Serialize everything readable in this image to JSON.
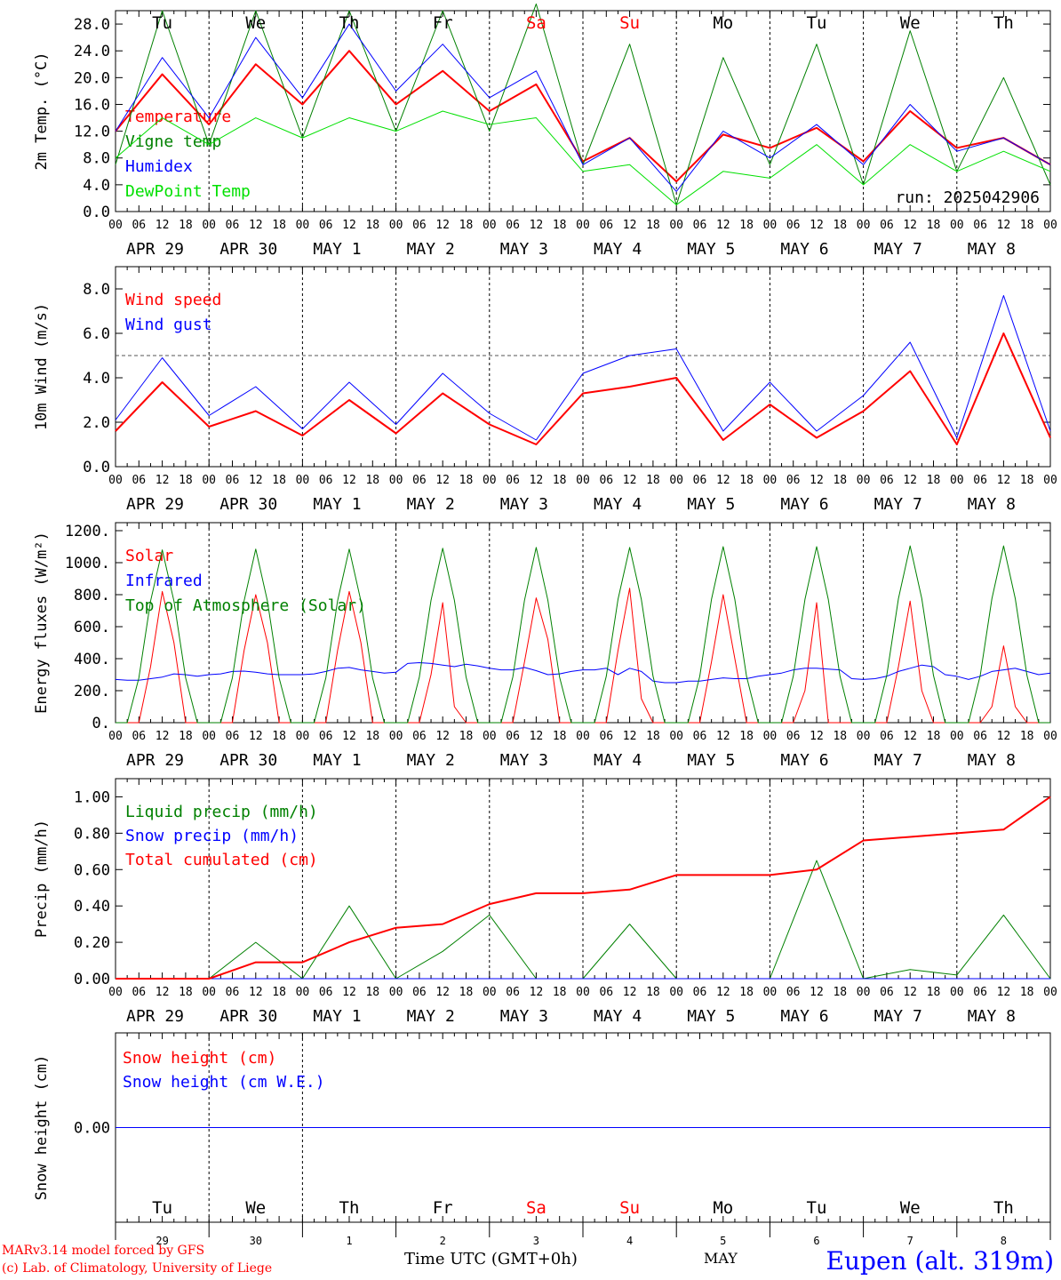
{
  "footer": {
    "credit_line1": "MARv3.14 model forced by GFS",
    "credit_line2": "(c) Lab. of Climatology, University of Liege",
    "x_title": "Time UTC (GMT+0h)",
    "month": "MAY",
    "location": "Eupen (alt. 319m)"
  },
  "days": {
    "weekdays": [
      "Tu",
      "We",
      "Th",
      "Fr",
      "Sa",
      "Su",
      "Mo",
      "Tu",
      "We",
      "Th"
    ],
    "weekend_indices": [
      4,
      5
    ],
    "date_labels": [
      "APR 29",
      "APR 30",
      "MAY  1",
      "MAY  2",
      "MAY  3",
      "MAY  4",
      "MAY  5",
      "MAY  6",
      "MAY  7",
      "MAY  8"
    ],
    "day_numbers": [
      "29",
      "30",
      "1",
      "2",
      "3",
      "4",
      "5",
      "6",
      "7",
      "8"
    ],
    "hour_ticks": [
      "00",
      "06",
      "12",
      "18"
    ],
    "end_tick": "00"
  },
  "colors": {
    "red": "#ff0000",
    "blue": "#0000ff",
    "green": "#008000",
    "lightgreen": "#00e000",
    "black": "#000000"
  },
  "chart_data": [
    {
      "type": "line",
      "ylabel": "2m Temp. (°C)",
      "ylim": [
        0,
        30
      ],
      "yticks": [
        "0.0",
        "4.0",
        "8.0",
        "12.0",
        "16.0",
        "20.0",
        "24.0",
        "28.0"
      ],
      "ytick_values": [
        0,
        4,
        8,
        12,
        16,
        20,
        24,
        28
      ],
      "x_hours": [
        0,
        12,
        24,
        36,
        48,
        60,
        72,
        84,
        96,
        108,
        120,
        132,
        144,
        156,
        168,
        180,
        192,
        204,
        216,
        228,
        240
      ],
      "annotation": "run: 2025042906",
      "series": [
        {
          "name": "Temperature",
          "color": "#ff0000",
          "width": 2,
          "values": [
            12,
            20.5,
            13,
            22,
            16,
            24,
            16,
            21,
            15,
            19,
            7.5,
            11,
            4.5,
            11.5,
            9.5,
            12.5,
            7.5,
            15,
            9.5,
            11,
            7
          ]
        },
        {
          "name": "Vigne temp",
          "color": "#008000",
          "width": 1,
          "values": [
            7,
            30,
            10,
            30,
            11,
            30,
            12,
            30,
            12,
            31,
            7,
            25,
            1,
            23,
            7,
            25,
            4,
            27,
            6,
            20,
            4
          ]
        },
        {
          "name": "Humidex",
          "color": "#0000ff",
          "width": 1,
          "values": [
            12,
            23,
            14,
            26,
            17,
            28,
            18,
            25,
            17,
            21,
            7,
            11,
            3,
            12,
            8,
            13,
            7,
            16,
            9,
            11,
            7
          ]
        },
        {
          "name": "DewPoint Temp",
          "color": "#00e000",
          "width": 1,
          "values": [
            8,
            14,
            10,
            14,
            11,
            14,
            12,
            15,
            13,
            14,
            6,
            7,
            1,
            6,
            5,
            10,
            4,
            10,
            6,
            9,
            6
          ]
        }
      ]
    },
    {
      "type": "line",
      "ylabel": "10m Wind (m/s)",
      "ylim": [
        0,
        9
      ],
      "yticks": [
        "0.0",
        "2.0",
        "4.0",
        "6.0",
        "8.0"
      ],
      "ytick_values": [
        0,
        2,
        4,
        6,
        8
      ],
      "x_hours": [
        0,
        12,
        24,
        36,
        48,
        60,
        72,
        84,
        96,
        108,
        120,
        132,
        144,
        156,
        168,
        180,
        192,
        204,
        216,
        228,
        240
      ],
      "reference_line": 5,
      "series": [
        {
          "name": "Wind speed",
          "color": "#ff0000",
          "width": 2,
          "values": [
            1.6,
            3.8,
            1.8,
            2.5,
            1.4,
            3.0,
            1.5,
            3.3,
            1.9,
            1.0,
            3.3,
            3.6,
            4.0,
            1.2,
            2.8,
            1.3,
            2.5,
            4.3,
            1.0,
            6.0,
            1.3
          ]
        },
        {
          "name": "Wind gust",
          "color": "#0000ff",
          "width": 1,
          "values": [
            2.1,
            4.9,
            2.3,
            3.6,
            1.7,
            3.8,
            1.9,
            4.2,
            2.4,
            1.2,
            4.2,
            5.0,
            5.3,
            1.6,
            3.8,
            1.6,
            3.2,
            5.6,
            1.3,
            7.7,
            1.6
          ]
        }
      ]
    },
    {
      "type": "line",
      "ylabel": "Energy fluxes (W/m²)",
      "ylim": [
        0,
        1250
      ],
      "yticks": [
        "0.",
        "200.",
        "400.",
        "600.",
        "800.",
        "1000.",
        "1200."
      ],
      "ytick_values": [
        0,
        200,
        400,
        600,
        800,
        1000,
        1200
      ],
      "x_hours": [
        0,
        3,
        6,
        9,
        12,
        15,
        18,
        21,
        24,
        27,
        30,
        33,
        36,
        39,
        42,
        45,
        48,
        51,
        54,
        57,
        60,
        63,
        66,
        69,
        72,
        75,
        78,
        81,
        84,
        87,
        90,
        93,
        96,
        99,
        102,
        105,
        108,
        111,
        114,
        117,
        120,
        123,
        126,
        129,
        132,
        135,
        138,
        141,
        144,
        147,
        150,
        153,
        156,
        159,
        162,
        165,
        168,
        171,
        174,
        177,
        180,
        183,
        186,
        189,
        192,
        195,
        198,
        201,
        204,
        207,
        210,
        213,
        216,
        219,
        222,
        225,
        228,
        231,
        234,
        237,
        240
      ],
      "series": [
        {
          "name": "Solar",
          "color": "#ff0000",
          "width": 1,
          "values": [
            0,
            0,
            0,
            350,
            820,
            500,
            0,
            0,
            0,
            0,
            0,
            450,
            800,
            500,
            0,
            0,
            0,
            0,
            0,
            450,
            820,
            500,
            0,
            0,
            0,
            0,
            0,
            300,
            750,
            100,
            0,
            0,
            0,
            0,
            0,
            380,
            780,
            520,
            0,
            0,
            0,
            0,
            0,
            450,
            840,
            150,
            0,
            0,
            0,
            0,
            0,
            380,
            800,
            400,
            0,
            0,
            0,
            0,
            0,
            200,
            750,
            0,
            0,
            0,
            0,
            0,
            0,
            350,
            760,
            200,
            0,
            0,
            0,
            0,
            0,
            100,
            480,
            100,
            0,
            0,
            0
          ]
        },
        {
          "name": "Infrared",
          "color": "#0000ff",
          "width": 1,
          "values": [
            270,
            265,
            265,
            275,
            285,
            305,
            300,
            290,
            300,
            305,
            320,
            322,
            315,
            305,
            300,
            300,
            300,
            305,
            320,
            340,
            345,
            330,
            320,
            310,
            315,
            370,
            375,
            370,
            360,
            350,
            365,
            355,
            340,
            330,
            330,
            345,
            325,
            300,
            305,
            320,
            330,
            330,
            340,
            300,
            340,
            320,
            260,
            250,
            250,
            260,
            260,
            270,
            280,
            275,
            275,
            290,
            300,
            310,
            330,
            340,
            340,
            335,
            330,
            275,
            270,
            275,
            290,
            320,
            340,
            360,
            350,
            300,
            290,
            270,
            290,
            320,
            330,
            340,
            320,
            300,
            310
          ]
        },
        {
          "name": "Top of Atmosphere (Solar)",
          "color": "#008000",
          "width": 1,
          "values": [
            0,
            0,
            280,
            760,
            1080,
            760,
            280,
            0,
            0,
            0,
            280,
            760,
            1085,
            760,
            280,
            0,
            0,
            0,
            280,
            760,
            1085,
            760,
            280,
            0,
            0,
            0,
            285,
            765,
            1090,
            765,
            285,
            0,
            0,
            0,
            285,
            765,
            1095,
            765,
            285,
            0,
            0,
            0,
            290,
            770,
            1095,
            770,
            290,
            0,
            0,
            0,
            290,
            770,
            1100,
            770,
            290,
            0,
            0,
            0,
            290,
            770,
            1100,
            770,
            290,
            0,
            0,
            0,
            295,
            775,
            1105,
            775,
            295,
            0,
            0,
            0,
            295,
            775,
            1105,
            775,
            295,
            0,
            0
          ]
        }
      ]
    },
    {
      "type": "line",
      "ylabel": "Precip (mm/h)",
      "ylim": [
        0,
        1.1
      ],
      "yticks": [
        "0.00",
        "0.20",
        "0.40",
        "0.60",
        "0.80",
        "1.00"
      ],
      "ytick_values": [
        0,
        0.2,
        0.4,
        0.6,
        0.8,
        1.0
      ],
      "x_hours": [
        0,
        12,
        24,
        36,
        48,
        60,
        72,
        84,
        96,
        108,
        120,
        132,
        144,
        156,
        168,
        180,
        192,
        204,
        216,
        228,
        240
      ],
      "series": [
        {
          "name": "Liquid precip (mm/h)",
          "color": "#008000",
          "width": 1,
          "values": [
            0,
            0,
            0,
            0.2,
            0,
            0.4,
            0,
            0.15,
            0.35,
            0,
            0,
            0.3,
            0,
            0,
            0,
            0.65,
            0,
            0.05,
            0.02,
            0.35,
            0
          ]
        },
        {
          "name": "Snow precip (mm/h)",
          "color": "#0000ff",
          "width": 1,
          "values": [
            0,
            0,
            0,
            0,
            0,
            0,
            0,
            0,
            0,
            0,
            0,
            0,
            0,
            0,
            0,
            0,
            0,
            0,
            0,
            0,
            0
          ]
        },
        {
          "name": "Total cumulated (cm)",
          "color": "#ff0000",
          "width": 2,
          "values": [
            0,
            0,
            0,
            0.09,
            0.09,
            0.2,
            0.28,
            0.3,
            0.41,
            0.47,
            0.47,
            0.49,
            0.57,
            0.57,
            0.57,
            0.6,
            0.76,
            0.78,
            0.8,
            0.82,
            1.0
          ]
        }
      ]
    },
    {
      "type": "line",
      "ylabel": "Snow height (cm)",
      "ylim": [
        -1,
        1
      ],
      "yticks": [
        "0.00"
      ],
      "ytick_values": [
        0
      ],
      "x_hours": [
        0,
        240
      ],
      "series": [
        {
          "name": "Snow height (cm)",
          "color": "#ff0000",
          "width": 1,
          "values": [
            0,
            0
          ]
        },
        {
          "name": "Snow height (cm W.E.)",
          "color": "#0000ff",
          "width": 1,
          "values": [
            0,
            0
          ]
        }
      ]
    }
  ]
}
